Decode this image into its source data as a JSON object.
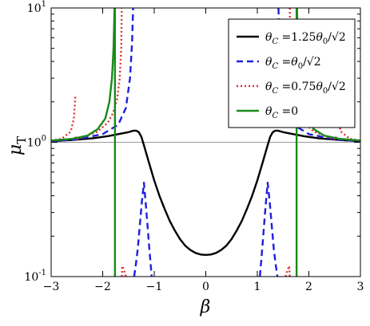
{
  "chart_data": {
    "type": "line",
    "title": "",
    "xlabel": "β",
    "ylabel": "μ",
    "ylabel_subscript": "T",
    "xlim": [
      -3,
      3
    ],
    "ylim": [
      0.1,
      10
    ],
    "yscale": "log",
    "xticks": [
      {
        "value": -3,
        "label": "−3"
      },
      {
        "value": -2,
        "label": "−2"
      },
      {
        "value": -1,
        "label": "−1"
      },
      {
        "value": 0,
        "label": "0"
      },
      {
        "value": 1,
        "label": "1"
      },
      {
        "value": 2,
        "label": "2"
      },
      {
        "value": 3,
        "label": "3"
      }
    ],
    "yticks": [
      {
        "value": 0.1,
        "label": "10",
        "exp": "-1"
      },
      {
        "value": 1,
        "label": "10",
        "exp": "0"
      },
      {
        "value": 10,
        "label": "10",
        "exp": "1"
      }
    ],
    "reference_line": {
      "y": 1,
      "color": "#999999"
    },
    "legend_position": "top-right",
    "series": [
      {
        "name": "θC = 1.25θ0/√2",
        "legend": {
          "lhs": "θ",
          "lhs_sub": "C",
          "coef": " =1.25",
          "rhs": "θ",
          "rhs_sub": "0",
          "tail": "/√2"
        },
        "color": "#000000",
        "dash": "solid",
        "x": [
          -3,
          -2.6,
          -2.2,
          -1.9,
          -1.7,
          -1.5,
          -1.4,
          -1.35,
          -1.3,
          -1.25,
          -1.2,
          -1.1,
          -1.0,
          -0.9,
          -0.8,
          -0.7,
          -0.6,
          -0.5,
          -0.4,
          -0.3,
          -0.2,
          -0.1,
          0,
          0.1,
          0.2,
          0.3,
          0.4,
          0.5,
          0.6,
          0.7,
          0.8,
          0.9,
          1.0,
          1.1,
          1.2,
          1.25,
          1.3,
          1.35,
          1.4,
          1.5,
          1.7,
          1.9,
          2.2,
          2.6,
          3
        ],
        "y": [
          1.02,
          1.04,
          1.07,
          1.11,
          1.15,
          1.19,
          1.22,
          1.22,
          1.19,
          1.1,
          0.95,
          0.7,
          0.52,
          0.4,
          0.32,
          0.26,
          0.22,
          0.19,
          0.17,
          0.158,
          0.15,
          0.146,
          0.145,
          0.146,
          0.15,
          0.158,
          0.17,
          0.19,
          0.22,
          0.26,
          0.32,
          0.4,
          0.52,
          0.7,
          0.95,
          1.1,
          1.19,
          1.22,
          1.22,
          1.19,
          1.15,
          1.11,
          1.07,
          1.04,
          1.02
        ]
      },
      {
        "name": "θC = θ0/√2",
        "legend": {
          "lhs": "θ",
          "lhs_sub": "C",
          "coef": " =",
          "rhs": "θ",
          "rhs_sub": "0",
          "tail": "/√2"
        },
        "color": "#1f1fdf",
        "dash": "dashed",
        "x": [
          -3,
          -2.5,
          -2.0,
          -1.7,
          -1.55,
          -1.47,
          -1.43,
          -1.41,
          null,
          -1.39,
          -1.36,
          -1.32,
          -1.28,
          -1.24,
          -1.2,
          -1.15,
          -1.1,
          -1.05,
          null,
          1.05,
          1.1,
          1.15,
          1.2,
          1.24,
          1.28,
          1.32,
          1.36,
          1.39,
          null,
          1.41,
          1.43,
          1.47,
          1.55,
          1.7,
          2.0,
          2.5,
          3
        ],
        "y": [
          1.02,
          1.05,
          1.15,
          1.35,
          1.8,
          3.0,
          5.5,
          10,
          null,
          0.1,
          0.12,
          0.16,
          0.24,
          0.36,
          0.5,
          0.3,
          0.17,
          0.1,
          null,
          0.1,
          0.17,
          0.3,
          0.5,
          0.36,
          0.24,
          0.16,
          0.12,
          0.1,
          null,
          10,
          5.5,
          3.0,
          1.8,
          1.35,
          1.15,
          1.05,
          1.02
        ]
      },
      {
        "name": "θC = 0.75θ0/√2",
        "legend": {
          "lhs": "θ",
          "lhs_sub": "C",
          "coef": " =0.75",
          "rhs": "θ",
          "rhs_sub": "0",
          "tail": "/√2"
        },
        "color": "#e03030",
        "dash": "dotted",
        "x": [
          -3,
          -2.8,
          -2.62,
          -2.56,
          -2.54,
          -2.53,
          null,
          -2.53,
          -2.52,
          -2.45,
          -2.3,
          -2.1,
          -1.9,
          -1.8,
          -1.72,
          -1.67,
          -1.64,
          -1.63,
          null,
          -1.63,
          -1.62,
          -1.58,
          -1.55,
          null,
          1.55,
          1.58,
          1.62,
          1.63,
          null,
          1.63,
          1.64,
          1.67,
          1.72,
          1.8,
          1.9,
          2.1,
          2.3,
          2.45,
          2.52,
          2.53,
          null,
          2.53,
          2.54,
          2.56,
          2.62,
          2.8,
          3
        ],
        "y": [
          1.03,
          1.06,
          1.2,
          1.5,
          1.9,
          2.2,
          null,
          1.1,
          1.05,
          1.07,
          1.12,
          1.2,
          1.4,
          1.65,
          2.1,
          3.0,
          5.0,
          10,
          null,
          0.1,
          0.12,
          0.11,
          0.1,
          null,
          0.1,
          0.11,
          0.12,
          0.1,
          null,
          10,
          5.0,
          3.0,
          2.1,
          1.65,
          1.4,
          1.2,
          1.12,
          1.07,
          1.05,
          1.1,
          null,
          2.2,
          1.9,
          1.5,
          1.2,
          1.06,
          1.03
        ]
      },
      {
        "name": "θC = 0",
        "legend": {
          "lhs": "θ",
          "lhs_sub": "C",
          "coef": " =0",
          "rhs": "",
          "rhs_sub": "",
          "tail": ""
        },
        "color": "#1a8a1a",
        "dash": "solid",
        "x": [
          -3,
          -2.6,
          -2.3,
          -2.1,
          -1.95,
          -1.87,
          -1.82,
          -1.79,
          -1.77,
          null,
          -1.762,
          -1.762,
          null,
          1.762,
          1.762,
          null,
          1.77,
          1.79,
          1.82,
          1.87,
          1.95,
          2.1,
          2.3,
          2.6,
          3
        ],
        "y": [
          1.03,
          1.06,
          1.12,
          1.25,
          1.5,
          2.0,
          3.0,
          5.0,
          10,
          null,
          10,
          0.1,
          null,
          0.1,
          10,
          null,
          10,
          5.0,
          3.0,
          2.0,
          1.5,
          1.25,
          1.12,
          1.06,
          1.03
        ]
      }
    ]
  }
}
